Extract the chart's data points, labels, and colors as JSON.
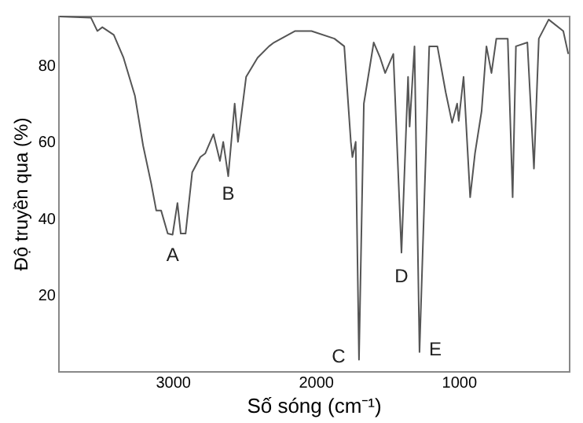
{
  "chart_data": {
    "type": "line",
    "xlabel": "Số sóng (cm⁻¹)",
    "ylabel": "Độ truyền qua (%)",
    "xlim": [
      3800,
      230
    ],
    "ylim": [
      0,
      93
    ],
    "xticks": [
      3000,
      2000,
      1000
    ],
    "yticks": [
      20,
      40,
      60,
      80
    ],
    "grid": false,
    "marker": "none",
    "line_style": "solid",
    "x": [
      3790,
      3571,
      3526,
      3491,
      3411,
      3343,
      3263,
      3206,
      3149,
      3114,
      3080,
      3034,
      3000,
      2966,
      2943,
      2909,
      2863,
      2806,
      2771,
      2714,
      2669,
      2646,
      2611,
      2566,
      2543,
      2486,
      2406,
      2326,
      2291,
      2143,
      2029,
      1869,
      1800,
      1754,
      1743,
      1720,
      1697,
      1663,
      1594,
      1549,
      1514,
      1457,
      1400,
      1354,
      1343,
      1309,
      1274,
      1206,
      1149,
      1091,
      1046,
      1011,
      1000,
      966,
      920,
      886,
      840,
      806,
      771,
      737,
      657,
      623,
      600,
      520,
      474,
      440,
      371,
      269,
      234
    ],
    "series": [
      {
        "color": "#555555",
        "values": [
          92.8,
          92.5,
          89,
          90,
          88,
          82,
          72,
          59,
          49,
          42,
          42,
          36,
          35.7,
          44,
          36,
          36,
          52,
          56,
          57,
          62,
          55,
          60,
          51,
          70,
          60,
          77,
          82,
          85,
          86,
          89,
          89,
          87,
          85,
          60,
          56,
          60,
          3,
          70,
          86,
          82,
          78,
          83,
          31,
          77,
          64,
          85,
          5,
          85,
          85,
          73,
          65,
          70,
          65.5,
          77,
          45.5,
          57,
          68,
          85,
          78,
          87,
          87,
          45.5,
          85,
          86,
          53,
          87,
          92,
          89,
          83
        ]
      }
    ],
    "annotations": [
      {
        "text": "A",
        "x": 3000,
        "y": 35.7
      },
      {
        "text": "B",
        "x": 2611,
        "y": 51
      },
      {
        "text": "C",
        "x": 1697,
        "y": 3
      },
      {
        "text": "D",
        "x": 1400,
        "y": 31
      },
      {
        "text": "E",
        "x": 1274,
        "y": 5
      }
    ]
  }
}
